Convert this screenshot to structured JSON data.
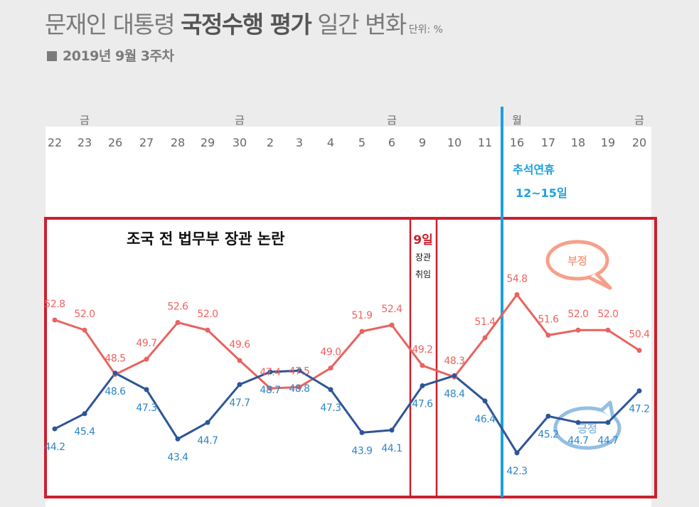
{
  "header": {
    "title_prefix": "문재인 대통령 ",
    "title_bold": "국정수행 평가",
    "title_suffix": " 일간 변화",
    "unit": "단위: %",
    "subtitle": "2019년 9월 3주차"
  },
  "annotations": {
    "box_main": "조국 전 법무부 장관 논란",
    "box_day": "9일",
    "box_day_sub1": "장관",
    "box_day_sub2": "취임",
    "holiday_line1": "추석연휴",
    "holiday_line2": "12~15일",
    "bubble_negative": "부정",
    "bubble_positive": "긍정"
  },
  "colors": {
    "negative": "#e8635f",
    "positive": "#2f5597",
    "negative_label": "#f0625e",
    "positive_label": "#2e86c8",
    "frame_red": "#cc1f2d",
    "holiday_blue": "#1ba1de",
    "bubble_negative": "#f6a08a",
    "bubble_positive": "#93bfe2"
  },
  "chart_data": {
    "type": "line",
    "title": "문재인 대통령 국정수행 평가 일간 변화",
    "subtitle": "2019년 9월 3주차",
    "categories": [
      "22",
      "23",
      "26",
      "27",
      "28",
      "29",
      "30",
      "2",
      "3",
      "4",
      "5",
      "6",
      "9",
      "10",
      "11",
      "16",
      "17",
      "18",
      "19",
      "20"
    ],
    "weekday_marks": [
      "",
      "금",
      "",
      "",
      "",
      "",
      "금",
      "",
      "",
      "",
      "",
      "금",
      "",
      "",
      "",
      "월",
      "",
      "",
      "",
      "금"
    ],
    "series": [
      {
        "name": "부정",
        "values": [
          52.8,
          52.0,
          48.5,
          49.7,
          52.6,
          52.0,
          49.6,
          47.4,
          47.5,
          49.0,
          51.9,
          52.4,
          49.2,
          48.3,
          51.4,
          54.8,
          51.6,
          52.0,
          52.0,
          50.4
        ]
      },
      {
        "name": "긍정",
        "values": [
          44.2,
          45.4,
          48.6,
          47.3,
          43.4,
          44.7,
          47.7,
          48.7,
          48.8,
          47.3,
          43.9,
          44.1,
          47.6,
          48.4,
          46.4,
          42.3,
          45.2,
          44.7,
          44.7,
          47.2
        ]
      }
    ],
    "label_text": {
      "negative": [
        "52.8",
        "52.0",
        "48.5",
        "49.7",
        "52.6",
        "52.0",
        "49.6",
        "47.4",
        "47.5",
        "49.0",
        "51.9",
        "52.4",
        "49.2",
        "48.3",
        "51.4",
        "54.8",
        "51.6",
        "52.0",
        "52.0",
        "50.4"
      ],
      "positive": [
        "44.2",
        "45.4",
        "48.6",
        "47.3",
        "43.4",
        "44.7",
        "47.7",
        "48.7",
        "48.8",
        "47.3",
        "43.9",
        "44.1",
        "47.6",
        "48.4",
        "46.4",
        "42.3",
        "45.2",
        "44.7",
        "44.7",
        "47.2"
      ]
    },
    "ylim": [
      40,
      56
    ],
    "grid": false,
    "legend": "speech bubbles at right"
  }
}
